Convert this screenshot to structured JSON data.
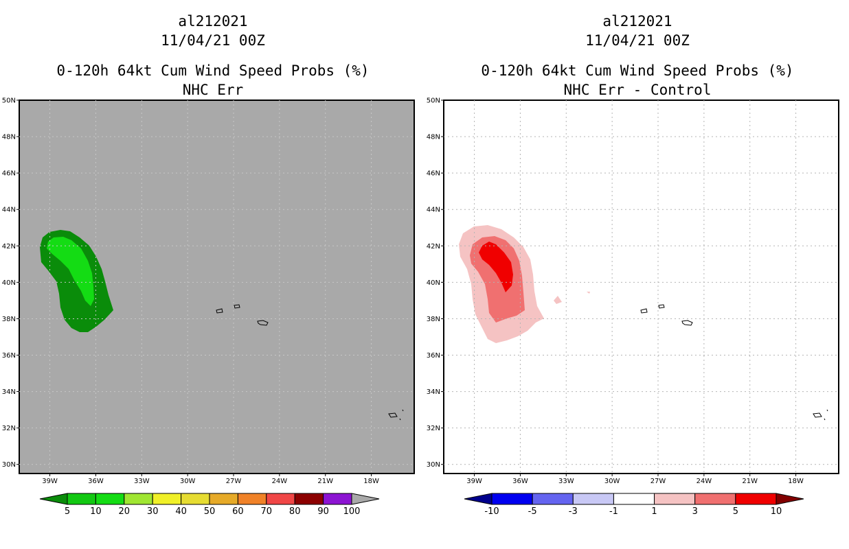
{
  "left_panel": {
    "storm_id": "al212021",
    "datetime": "11/04/21 00Z",
    "product": "0-120h 64kt Cum Wind Speed Probs (%)",
    "subtitle": "NHC Err",
    "background_color": "#a9a9a9",
    "colorbar": {
      "labels": [
        "5",
        "10",
        "20",
        "30",
        "40",
        "50",
        "60",
        "70",
        "80",
        "90",
        "100"
      ],
      "colors": [
        "#0a8c0a",
        "#12c812",
        "#14dc14",
        "#a0e632",
        "#f0f028",
        "#e6dc32",
        "#e6aa28",
        "#f08228",
        "#f04646",
        "#8c0000",
        "#8c14d2",
        "#a9a9a9"
      ]
    }
  },
  "right_panel": {
    "storm_id": "al212021",
    "datetime": "11/04/21 00Z",
    "product": "0-120h 64kt Cum Wind Speed Probs (%)",
    "subtitle": "NHC Err - Control",
    "background_color": "#ffffff",
    "colorbar": {
      "labels": [
        "-10",
        "-5",
        "-3",
        "-1",
        "1",
        "3",
        "5",
        "10"
      ],
      "colors": [
        "#00008c",
        "#0000f0",
        "#6464f0",
        "#c8c8f5",
        "#ffffff",
        "#f5c3c3",
        "#f07070",
        "#f00000",
        "#820000"
      ]
    }
  },
  "axes": {
    "lat_labels": [
      "50N",
      "48N",
      "46N",
      "44N",
      "42N",
      "40N",
      "38N",
      "36N",
      "34N",
      "32N",
      "30N"
    ],
    "lon_labels": [
      "39W",
      "36W",
      "33W",
      "30W",
      "27W",
      "24W",
      "21W",
      "18W"
    ],
    "lat_range": [
      29.5,
      50
    ],
    "lon_range": [
      -41,
      -15.2
    ]
  }
}
